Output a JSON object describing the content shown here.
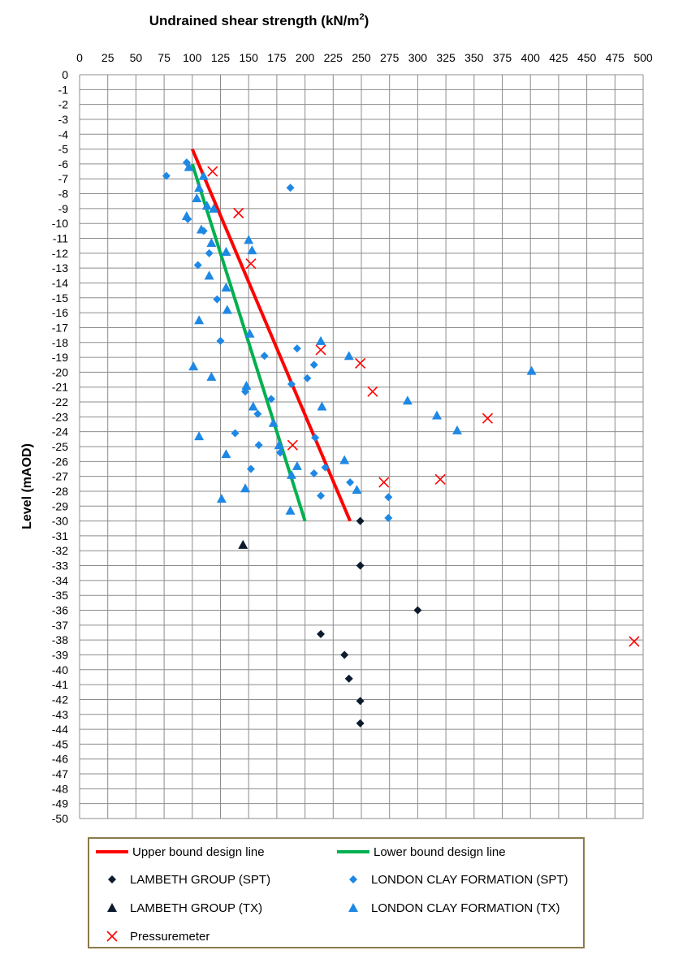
{
  "chart_data": {
    "type": "scatter",
    "title": "Undrained shear strength (kN/m²)",
    "title_main": "Undrained shear strength (kN/m",
    "title_sup": "2",
    "title_end": ")",
    "ylabel": "Level (mAOD)",
    "xlim": [
      0,
      500
    ],
    "ylim": [
      -50,
      0
    ],
    "x_ticks": [
      0,
      25,
      50,
      75,
      100,
      125,
      150,
      175,
      200,
      225,
      250,
      275,
      300,
      325,
      350,
      375,
      400,
      425,
      450,
      475,
      500
    ],
    "y_ticks": [
      0,
      -1,
      -2,
      -3,
      -4,
      -5,
      -6,
      -7,
      -8,
      -9,
      -10,
      -11,
      -12,
      -13,
      -14,
      -15,
      -16,
      -17,
      -18,
      -19,
      -20,
      -21,
      -22,
      -23,
      -24,
      -25,
      -26,
      -27,
      -28,
      -29,
      -30,
      -31,
      -32,
      -33,
      -34,
      -35,
      -36,
      -37,
      -38,
      -39,
      -40,
      -41,
      -42,
      -43,
      -44,
      -45,
      -46,
      -47,
      -48,
      -49,
      -50
    ],
    "x_axis_position": "top",
    "grid": true,
    "legend_position": "bottom",
    "lines": [
      {
        "name": "Upper bound design line",
        "color": "#ff0000",
        "x": [
          100,
          240
        ],
        "y": [
          -5,
          -30
        ]
      },
      {
        "name": "Lower bound design line",
        "color": "#00b050",
        "x": [
          100,
          200
        ],
        "y": [
          -6,
          -30
        ]
      }
    ],
    "series": [
      {
        "name": "LAMBETH GROUP (SPT)",
        "marker": "diamond",
        "color": "#0d1b2e",
        "x": [
          249,
          249,
          300,
          214,
          235,
          239,
          249,
          249
        ],
        "y": [
          -30,
          -33,
          -36,
          -37.6,
          -39,
          -40.6,
          -42.1,
          -43.6
        ]
      },
      {
        "name": "LONDON CLAY FORMATION (SPT)",
        "marker": "diamond",
        "color": "#1e88e5",
        "x": [
          95,
          77,
          187,
          96,
          110,
          105,
          115,
          122,
          125,
          164,
          193,
          208,
          202,
          188,
          170,
          147,
          158,
          178,
          138,
          159,
          152,
          209,
          218,
          208,
          240,
          214,
          274,
          274
        ],
        "y": [
          -5.9,
          -6.8,
          -7.6,
          -9.7,
          -10.5,
          -12.8,
          -12.0,
          -15.1,
          -17.9,
          -18.9,
          -18.4,
          -19.5,
          -20.4,
          -20.8,
          -21.8,
          -21.3,
          -22.8,
          -25.4,
          -24.1,
          -24.9,
          -26.5,
          -24.4,
          -26.4,
          -26.8,
          -27.4,
          -28.3,
          -28.4,
          -29.8
        ]
      },
      {
        "name": "LAMBETH GROUP (TX)",
        "marker": "triangle",
        "color": "#0d1b2e",
        "x": [
          145
        ],
        "y": [
          -31.6
        ]
      },
      {
        "name": "LONDON CLAY FORMATION (TX)",
        "marker": "triangle",
        "color": "#1e88e5",
        "x": [
          97,
          110,
          106,
          104,
          113,
          119,
          95,
          108,
          150,
          117,
          153,
          130,
          115,
          130,
          131,
          106,
          151,
          214,
          239,
          401,
          101,
          117,
          148,
          154,
          215,
          291,
          317,
          335,
          172,
          106,
          177,
          130,
          193,
          235,
          147,
          188,
          246,
          126,
          187
        ],
        "y": [
          -6.2,
          -6.8,
          -7.6,
          -8.3,
          -8.8,
          -9.0,
          -9.5,
          -10.4,
          -11.1,
          -11.3,
          -11.8,
          -11.9,
          -13.5,
          -14.3,
          -15.8,
          -16.5,
          -17.4,
          -17.9,
          -18.9,
          -19.9,
          -19.6,
          -20.3,
          -20.9,
          -22.3,
          -22.3,
          -21.9,
          -22.9,
          -23.9,
          -23.4,
          -24.3,
          -24.9,
          -25.5,
          -26.3,
          -25.9,
          -27.8,
          -26.9,
          -27.9,
          -28.5,
          -29.3
        ]
      },
      {
        "name": "Pressuremeter",
        "marker": "x",
        "color": "#ff0000",
        "x": [
          118,
          141,
          152,
          214,
          249,
          260,
          189,
          362,
          270,
          320,
          492
        ],
        "y": [
          -6.5,
          -9.3,
          -12.7,
          -18.5,
          -19.4,
          -21.3,
          -24.9,
          -23.1,
          -27.4,
          -27.2,
          -38.1
        ]
      }
    ]
  },
  "legend": {
    "items": [
      {
        "label": "Upper bound design line",
        "symbol": "line",
        "color": "#ff0000"
      },
      {
        "label": "Lower bound design line",
        "symbol": "line",
        "color": "#00b050"
      },
      {
        "label": "LAMBETH GROUP (SPT)",
        "symbol": "diamond",
        "color": "#0d1b2e"
      },
      {
        "label": "LONDON CLAY FORMATION (SPT)",
        "symbol": "diamond",
        "color": "#1e88e5"
      },
      {
        "label": "LAMBETH GROUP (TX)",
        "symbol": "triangle",
        "color": "#0d1b2e"
      },
      {
        "label": "LONDON CLAY FORMATION (TX)",
        "symbol": "triangle",
        "color": "#1e88e5"
      },
      {
        "label": "Pressuremeter",
        "symbol": "x",
        "color": "#ff0000"
      }
    ],
    "border_color": "#8a7b4a"
  },
  "colors": {
    "grid": "#8c8c8c",
    "axis": "#8c8c8c"
  }
}
